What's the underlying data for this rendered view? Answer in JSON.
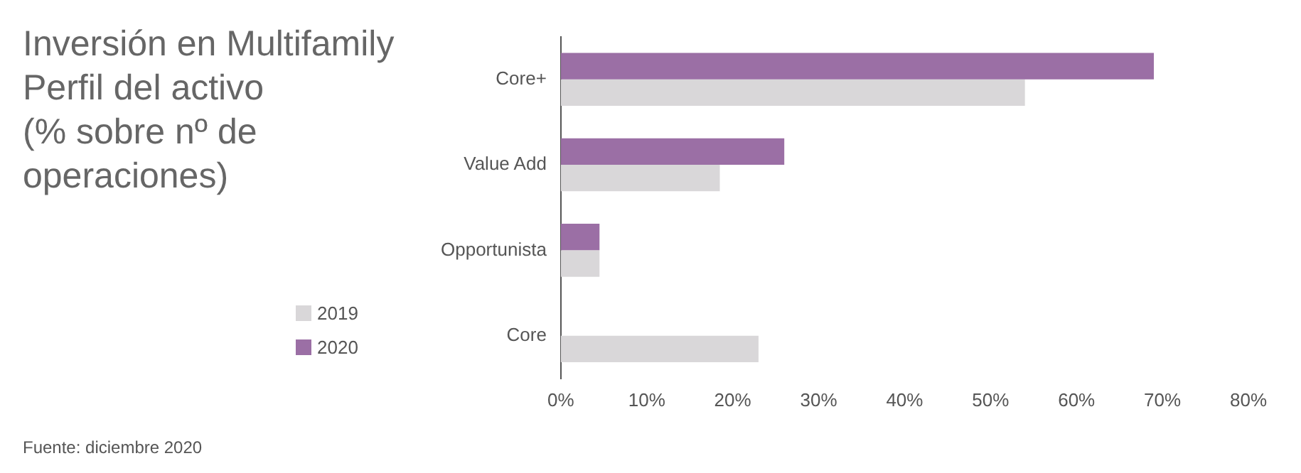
{
  "chart_data": {
    "type": "bar",
    "orientation": "horizontal",
    "title": "Inversión en Multifamily\nPerfil del activo\n(% sobre nº de\noperaciones)",
    "categories": [
      "Core+",
      "Value Add",
      "Opportunista",
      "Core"
    ],
    "series": [
      {
        "name": "2020",
        "color": "#9b6fa5",
        "values": [
          69,
          26,
          4.5,
          0
        ]
      },
      {
        "name": "2019",
        "color": "#d9d7d9",
        "values": [
          54,
          18.5,
          4.5,
          23
        ]
      }
    ],
    "xlim": [
      0,
      80
    ],
    "xticks": [
      {
        "value": 0,
        "label": "0%"
      },
      {
        "value": 10,
        "label": "10%"
      },
      {
        "value": 20,
        "label": "20%"
      },
      {
        "value": 30,
        "label": "30%"
      },
      {
        "value": 40,
        "label": "40%"
      },
      {
        "value": 50,
        "label": "50%"
      },
      {
        "value": 60,
        "label": "60%"
      },
      {
        "value": 70,
        "label": "70%"
      },
      {
        "value": 80,
        "label": "80%"
      }
    ],
    "grid": false,
    "legend": "left",
    "annotations": [
      "Fuente: diciembre 2020"
    ]
  }
}
